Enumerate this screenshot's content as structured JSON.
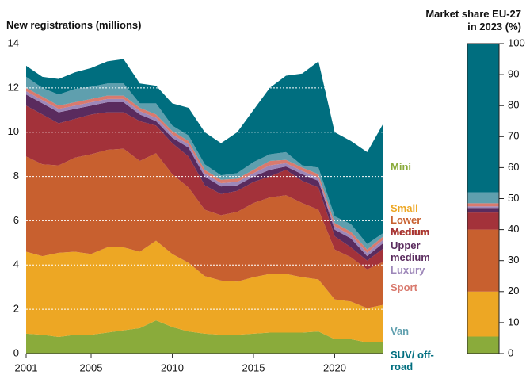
{
  "chart_data": [
    {
      "type": "area",
      "stacked": true,
      "title": "New registrations (millions)",
      "x": [
        2001,
        2002,
        2003,
        2004,
        2005,
        2006,
        2007,
        2008,
        2009,
        2010,
        2011,
        2012,
        2013,
        2014,
        2015,
        2016,
        2017,
        2018,
        2019,
        2020,
        2021,
        2022,
        2023
      ],
      "xlim": [
        2001,
        2023
      ],
      "xticks": [
        2001,
        2005,
        2010,
        2015,
        2020
      ],
      "ylim": [
        0,
        14
      ],
      "yticks": [
        0,
        2,
        4,
        6,
        8,
        10,
        12,
        14
      ],
      "grid": true,
      "series": [
        {
          "name": "Mini",
          "color": "#8aab3b",
          "values": [
            0.9,
            0.85,
            0.75,
            0.85,
            0.85,
            0.95,
            1.05,
            1.15,
            1.5,
            1.2,
            1.0,
            0.9,
            0.85,
            0.85,
            0.9,
            0.95,
            0.95,
            0.95,
            1.0,
            0.65,
            0.65,
            0.5,
            0.5
          ]
        },
        {
          "name": "Small",
          "color": "#eda724",
          "values": [
            3.7,
            3.55,
            3.8,
            3.75,
            3.65,
            3.85,
            3.75,
            3.45,
            3.6,
            3.3,
            3.1,
            2.6,
            2.45,
            2.4,
            2.55,
            2.65,
            2.65,
            2.5,
            2.35,
            1.8,
            1.7,
            1.55,
            1.7
          ]
        },
        {
          "name": "Lower medium",
          "color": "#c8602f",
          "values": [
            4.3,
            4.15,
            3.95,
            4.25,
            4.5,
            4.4,
            4.45,
            4.1,
            3.95,
            3.6,
            3.4,
            3.0,
            2.95,
            3.15,
            3.35,
            3.45,
            3.55,
            3.35,
            3.15,
            2.25,
            2.0,
            1.75,
            1.95
          ]
        },
        {
          "name": "Medium",
          "color": "#a3323a",
          "values": [
            2.3,
            2.25,
            1.9,
            1.75,
            1.8,
            1.7,
            1.65,
            1.8,
            1.25,
            1.4,
            1.4,
            1.1,
            0.95,
            0.95,
            0.95,
            0.95,
            1.15,
            1.0,
            1.0,
            0.6,
            0.45,
            0.4,
            0.6
          ]
        },
        {
          "name": "Upper medium",
          "color": "#5a2b5e",
          "values": [
            0.5,
            0.5,
            0.5,
            0.45,
            0.4,
            0.45,
            0.45,
            0.3,
            0.2,
            0.25,
            0.4,
            0.4,
            0.35,
            0.25,
            0.25,
            0.3,
            0.15,
            0.3,
            0.3,
            0.3,
            0.4,
            0.2,
            0.25
          ]
        },
        {
          "name": "Luxury",
          "color": "#9d87b9",
          "values": [
            0.15,
            0.15,
            0.15,
            0.15,
            0.15,
            0.15,
            0.15,
            0.15,
            0.15,
            0.15,
            0.15,
            0.15,
            0.15,
            0.15,
            0.15,
            0.2,
            0.15,
            0.15,
            0.15,
            0.15,
            0.15,
            0.15,
            0.15
          ]
        },
        {
          "name": "Sport",
          "color": "#d97a6e",
          "values": [
            0.15,
            0.15,
            0.15,
            0.15,
            0.15,
            0.15,
            0.15,
            0.15,
            0.15,
            0.15,
            0.15,
            0.15,
            0.15,
            0.15,
            0.15,
            0.2,
            0.15,
            0.15,
            0.15,
            0.15,
            0.15,
            0.15,
            0.15
          ]
        },
        {
          "name": "Van",
          "color": "#5f9fae",
          "values": [
            0.5,
            0.4,
            0.5,
            0.6,
            0.55,
            0.55,
            0.55,
            0.2,
            0.5,
            0.25,
            0.25,
            0.25,
            0.2,
            0.25,
            0.35,
            0.3,
            0.35,
            0.1,
            0.3,
            0.3,
            0.35,
            0.25,
            0.15
          ]
        },
        {
          "name": "SUV/ off-road",
          "color": "#006e7f",
          "values": [
            0.5,
            0.5,
            0.7,
            0.75,
            0.85,
            1.0,
            1.1,
            0.9,
            0.8,
            1.0,
            1.25,
            1.45,
            1.45,
            1.85,
            2.35,
            3.0,
            3.45,
            4.15,
            4.8,
            3.8,
            3.75,
            4.15,
            4.95
          ]
        }
      ]
    },
    {
      "type": "bar",
      "stacked": true,
      "title": [
        "Market share EU-27",
        "in 2023 (%)"
      ],
      "ylim": [
        0,
        100
      ],
      "yticks": [
        0,
        10,
        20,
        30,
        40,
        50,
        60,
        70,
        80,
        90,
        100
      ],
      "series": [
        {
          "color": "#8aab3b",
          "values": [
            5.5
          ]
        },
        {
          "color": "#eda724",
          "values": [
            14.5
          ]
        },
        {
          "color": "#c8602f",
          "values": [
            20
          ]
        },
        {
          "color": "#a3323a",
          "values": [
            5.5
          ]
        },
        {
          "color": "#5a2b5e",
          "values": [
            1.5
          ]
        },
        {
          "color": "#9d87b9",
          "values": [
            0.5
          ]
        },
        {
          "color": "#d97a6e",
          "values": [
            1
          ]
        },
        {
          "color": "#5f9fae",
          "values": [
            3.5
          ]
        },
        {
          "color": "#006e7f",
          "values": [
            48
          ]
        }
      ]
    }
  ]
}
